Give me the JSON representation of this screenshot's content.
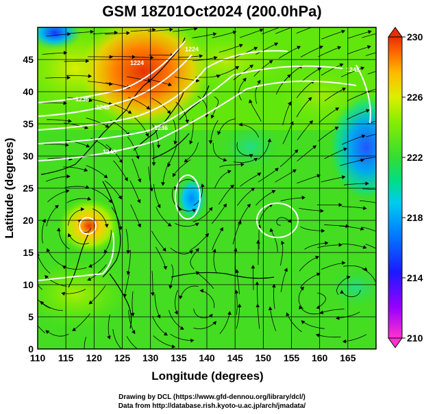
{
  "title": "GSM 18Z01Oct2024 (200.0hPa)",
  "x_axis": {
    "label": "Longitude (degrees)",
    "ticks": [
      "110",
      "115",
      "120",
      "125",
      "130",
      "135",
      "140",
      "145",
      "150",
      "155",
      "160",
      "165"
    ],
    "range": [
      110,
      170
    ]
  },
  "y_axis": {
    "label": "Latitude (degrees)",
    "ticks": [
      "0",
      "5",
      "10",
      "15",
      "20",
      "25",
      "30",
      "35",
      "40",
      "45"
    ],
    "range": [
      0,
      50
    ]
  },
  "colorbar": {
    "labels": [
      "230",
      "226",
      "222",
      "218",
      "214",
      "210"
    ],
    "range": [
      210,
      230
    ],
    "colors": [
      "#ff33cc",
      "#b300ff",
      "#3300ff",
      "#0066ff",
      "#00ccff",
      "#00e6a0",
      "#33dd33",
      "#66ee00",
      "#ccee00",
      "#ffcc00",
      "#ff8000",
      "#e63300"
    ]
  },
  "contour_labels": [
    "1224",
    "1236",
    "1248",
    "1240",
    "1236",
    "1248",
    "1224"
  ],
  "credits": {
    "line1": "Drawing by DCL (https://www.gfd-dennou.org/library/dcl/)",
    "line2": "Data from http://database.rish.kyoto-u.ac.jp/arch/jmadata/"
  },
  "chart_data": {
    "type": "heatmap",
    "title": "GSM 18Z01Oct2024 (200.0hPa)",
    "xlabel": "Longitude (degrees)",
    "ylabel": "Latitude (degrees)",
    "xlim": [
      110,
      170
    ],
    "ylim": [
      0,
      50
    ],
    "colorbar_range": [
      210,
      230
    ],
    "colorbar_ticks": [
      210,
      214,
      218,
      222,
      226,
      230
    ],
    "overlays": [
      "geopotential height contours (white)",
      "wind streamlines (black)",
      "coastlines"
    ],
    "features": [
      {
        "lon": 120,
        "lat": 21,
        "description": "warm core (~230) near Taiwan"
      },
      {
        "lon": 137,
        "lat": 26,
        "description": "cold anomaly (~218) south of Japan"
      },
      {
        "lon": 165,
        "lat": 32,
        "description": "cold region (~217) east"
      },
      {
        "lon": 127,
        "lat": 45,
        "description": "warm region (~229) northeast China"
      }
    ]
  }
}
